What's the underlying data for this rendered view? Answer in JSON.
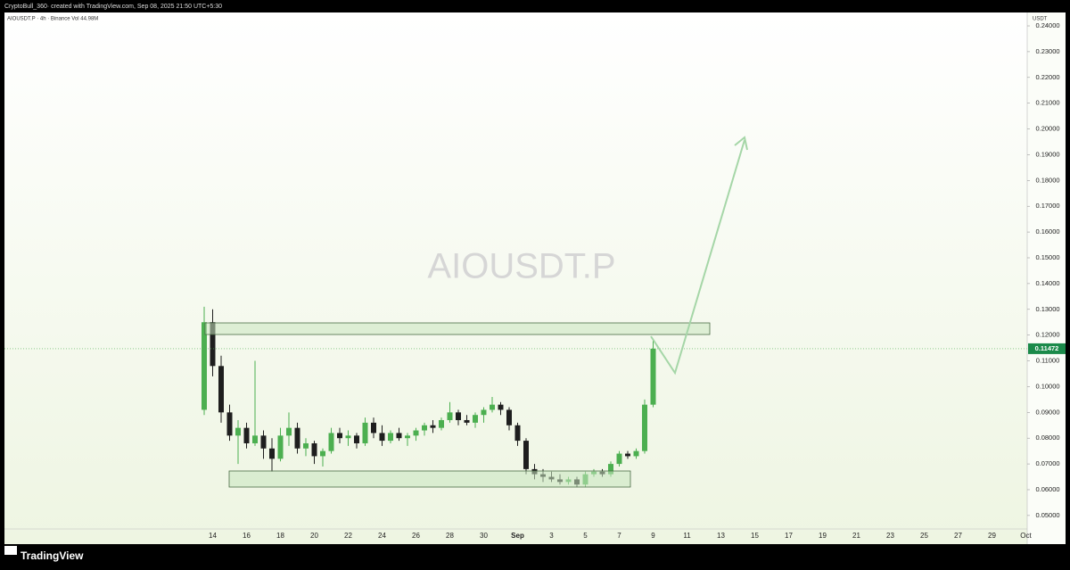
{
  "chart_data": {
    "type": "candlestick",
    "caption": "CryptoBull_360· created with TradingView.com, Sep 08, 2025 21:50 UTC+5:30",
    "title": "AIOUSDT.P · 4h · Binance  Vol 44.98M",
    "watermark": "AIOUSDT.P",
    "currency_label": "USDT",
    "brand": "TradingView",
    "up_color": "#4caf50",
    "down_color": "#1e1e1e",
    "grid": false,
    "ylim": [
      0.0458,
      0.2452
    ],
    "yticks": [
      {
        "value": 0.05,
        "label": "0.05000"
      },
      {
        "value": 0.06,
        "label": "0.06000"
      },
      {
        "value": 0.07,
        "label": "0.07000"
      },
      {
        "value": 0.08,
        "label": "0.08000"
      },
      {
        "value": 0.09,
        "label": "0.09000"
      },
      {
        "value": 0.1,
        "label": "0.10000"
      },
      {
        "value": 0.11,
        "label": "0.11000"
      },
      {
        "value": 0.12,
        "label": "0.12000"
      },
      {
        "value": 0.13,
        "label": "0.13000"
      },
      {
        "value": 0.14,
        "label": "0.14000"
      },
      {
        "value": 0.15,
        "label": "0.15000"
      },
      {
        "value": 0.16,
        "label": "0.16000"
      },
      {
        "value": 0.17,
        "label": "0.17000"
      },
      {
        "value": 0.18,
        "label": "0.18000"
      },
      {
        "value": 0.19,
        "label": "0.19000"
      },
      {
        "value": 0.2,
        "label": "0.20000"
      },
      {
        "value": 0.21,
        "label": "0.21000"
      },
      {
        "value": 0.22,
        "label": "0.22000"
      },
      {
        "value": 0.23,
        "label": "0.23000"
      },
      {
        "value": 0.24,
        "label": "0.24000"
      }
    ],
    "categories": [
      null,
      "14",
      null,
      null,
      null,
      "16",
      null,
      null,
      null,
      "18",
      null,
      null,
      null,
      "20",
      null,
      null,
      null,
      "22",
      null,
      null,
      null,
      "24",
      null,
      null,
      null,
      "26",
      null,
      null,
      null,
      "28",
      null,
      null,
      null,
      "30",
      null,
      null,
      null,
      "Sep",
      null,
      null,
      null,
      "3",
      null,
      null,
      null,
      "5",
      null,
      null,
      null,
      "7",
      null,
      null,
      null,
      "9",
      null,
      null,
      null,
      "11",
      null,
      null,
      null,
      "13",
      null,
      null,
      null,
      "15",
      null,
      null,
      null,
      "17",
      null,
      null,
      null,
      "19",
      null,
      null,
      null,
      "21",
      null,
      null,
      null,
      "23",
      null,
      null,
      null,
      "25",
      null,
      null,
      null,
      "27",
      null,
      null,
      null,
      "29",
      null,
      null,
      null,
      "Oct"
    ],
    "open": [
      0.091,
      0.125,
      0.108,
      0.09,
      0.081,
      0.084,
      0.078,
      0.081,
      0.076,
      0.072,
      0.081,
      0.084,
      0.076,
      0.078,
      0.073,
      0.075,
      0.082,
      0.08,
      0.081,
      0.078,
      0.086,
      0.082,
      0.079,
      0.082,
      0.08,
      0.081,
      0.083,
      0.085,
      0.084,
      0.087,
      0.09,
      0.087,
      0.086,
      0.089,
      0.091,
      0.093,
      0.091,
      0.085,
      0.079,
      0.068,
      0.066,
      0.065,
      0.064,
      0.063,
      0.064,
      0.062,
      0.066,
      0.067,
      0.066,
      0.07,
      0.074,
      0.073,
      0.075,
      0.093,
      null,
      null,
      null,
      null,
      null,
      null,
      null,
      null,
      null,
      null,
      null,
      null,
      null,
      null,
      null,
      null,
      null,
      null,
      null,
      null,
      null,
      null,
      null,
      null,
      null,
      null,
      null,
      null,
      null,
      null,
      null,
      null,
      null,
      null,
      null,
      null,
      null,
      null,
      null,
      null,
      null,
      null,
      null,
      null
    ],
    "high": [
      0.131,
      0.13,
      0.112,
      0.093,
      0.087,
      0.086,
      0.11,
      0.083,
      0.08,
      0.084,
      0.09,
      0.086,
      0.08,
      0.079,
      0.076,
      0.084,
      0.084,
      0.083,
      0.082,
      0.088,
      0.088,
      0.085,
      0.083,
      0.084,
      0.082,
      0.084,
      0.086,
      0.087,
      0.088,
      0.094,
      0.091,
      0.089,
      0.09,
      0.092,
      0.096,
      0.094,
      0.092,
      0.086,
      0.08,
      0.07,
      0.068,
      0.067,
      0.066,
      0.065,
      0.065,
      0.067,
      0.068,
      0.068,
      0.071,
      0.075,
      0.075,
      0.076,
      0.095,
      0.118,
      null,
      null,
      null,
      null,
      null,
      null,
      null,
      null,
      null,
      null,
      null,
      null,
      null,
      null,
      null,
      null,
      null,
      null,
      null,
      null,
      null,
      null,
      null,
      null,
      null,
      null,
      null,
      null,
      null,
      null,
      null,
      null,
      null,
      null,
      null,
      null,
      null,
      null,
      null,
      null,
      null,
      null,
      null,
      null
    ],
    "low": [
      0.089,
      0.104,
      0.086,
      0.079,
      0.07,
      0.076,
      0.077,
      0.072,
      0.067,
      0.071,
      0.077,
      0.074,
      0.073,
      0.07,
      0.069,
      0.074,
      0.078,
      0.077,
      0.076,
      0.077,
      0.08,
      0.077,
      0.078,
      0.079,
      0.077,
      0.079,
      0.081,
      0.082,
      0.083,
      0.086,
      0.085,
      0.085,
      0.084,
      0.086,
      0.09,
      0.089,
      0.083,
      0.077,
      0.066,
      0.064,
      0.063,
      0.063,
      0.062,
      0.062,
      0.061,
      0.061,
      0.065,
      0.065,
      0.065,
      0.069,
      0.072,
      0.072,
      0.074,
      0.092,
      null,
      null,
      null,
      null,
      null,
      null,
      null,
      null,
      null,
      null,
      null,
      null,
      null,
      null,
      null,
      null,
      null,
      null,
      null,
      null,
      null,
      null,
      null,
      null,
      null,
      null,
      null,
      null,
      null,
      null,
      null,
      null,
      null,
      null,
      null,
      null,
      null,
      null,
      null,
      null,
      null,
      null,
      null,
      null
    ],
    "close": [
      0.125,
      0.108,
      0.09,
      0.081,
      0.084,
      0.078,
      0.081,
      0.076,
      0.072,
      0.081,
      0.084,
      0.076,
      0.078,
      0.073,
      0.075,
      0.082,
      0.08,
      0.081,
      0.078,
      0.086,
      0.082,
      0.079,
      0.082,
      0.08,
      0.081,
      0.083,
      0.085,
      0.084,
      0.087,
      0.09,
      0.087,
      0.086,
      0.089,
      0.091,
      0.093,
      0.091,
      0.085,
      0.079,
      0.068,
      0.066,
      0.065,
      0.064,
      0.063,
      0.064,
      0.062,
      0.066,
      0.067,
      0.066,
      0.07,
      0.074,
      0.073,
      0.075,
      0.093,
      0.11472,
      null,
      null,
      null,
      null,
      null,
      null,
      null,
      null,
      null,
      null,
      null,
      null,
      null,
      null,
      null,
      null,
      null,
      null,
      null,
      null,
      null,
      null,
      null,
      null,
      null,
      null,
      null,
      null,
      null,
      null,
      null,
      null,
      null,
      null,
      null,
      null,
      null,
      null,
      null,
      null,
      null,
      null,
      null,
      null
    ]
  }
}
